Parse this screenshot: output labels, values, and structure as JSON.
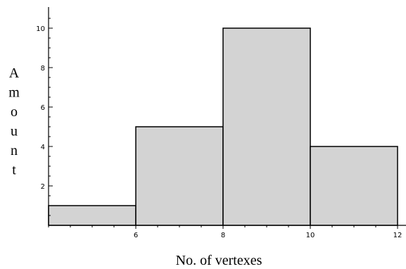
{
  "chart_data": {
    "type": "bar",
    "subtype": "histogram",
    "bins": [
      {
        "start": 4,
        "end": 6,
        "value": 1
      },
      {
        "start": 6,
        "end": 8,
        "value": 5
      },
      {
        "start": 8,
        "end": 10,
        "value": 10
      },
      {
        "start": 10,
        "end": 12,
        "value": 4
      }
    ],
    "x_ticks": [
      6,
      8,
      10,
      12
    ],
    "y_ticks": [
      2,
      4,
      6,
      8,
      10
    ],
    "xlim": [
      4,
      12.2
    ],
    "ylim": [
      0,
      11
    ],
    "title": "",
    "xlabel": "No. of vertexes",
    "ylabel": "Amount",
    "ylabel_orientation": "stacked-vertical",
    "grid": false,
    "legend": "none",
    "colors": {
      "bar_fill": "#d3d3d3",
      "bar_stroke": "#000000",
      "axis": "#000000"
    }
  }
}
